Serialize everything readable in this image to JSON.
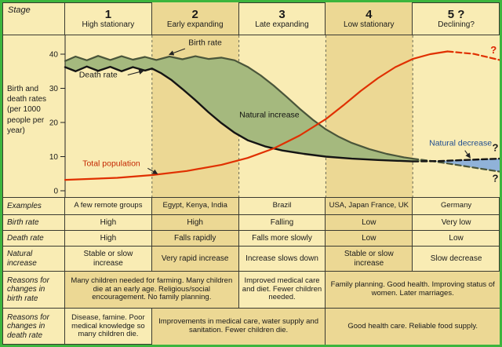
{
  "theme": {
    "frame": "#3db53d",
    "bg": "#f9ecb4",
    "bg_alt": "#ecd894",
    "grid": "#3a3a30",
    "text": "#1a1a1a"
  },
  "left": {
    "stage_label": "Stage",
    "axis_label": "Birth and death rates (per 1000 people per year)"
  },
  "rows": {
    "examples": "Examples",
    "birth_rate": "Birth rate",
    "death_rate": "Death rate",
    "natural_increase": "Natural increase",
    "reasons_birth": "Reasons for changes in birth rate",
    "reasons_death": "Reasons for changes in death rate"
  },
  "stages": [
    {
      "number": "1",
      "name": "High stationary",
      "examples": "A few remote groups",
      "birth_rate": "High",
      "death_rate": "High",
      "natural_increase": "Stable or slow increase"
    },
    {
      "number": "2",
      "name": "Early expanding",
      "examples": "Egypt, Kenya, India",
      "birth_rate": "High",
      "death_rate": "Falls rapidly",
      "natural_increase": "Very rapid increase"
    },
    {
      "number": "3",
      "name": "Late expanding",
      "examples": "Brazil",
      "birth_rate": "Falling",
      "death_rate": "Falls more slowly",
      "natural_increase": "Increase slows down"
    },
    {
      "number": "4",
      "name": "Low stationary",
      "examples": "USA, Japan France, UK",
      "birth_rate": "Low",
      "death_rate": "Low",
      "natural_increase": "Stable or slow increase"
    },
    {
      "number": "5 ?",
      "name": "Declining?",
      "examples": "Germany",
      "birth_rate": "Very low",
      "death_rate": "Low",
      "natural_increase": "Slow decrease"
    }
  ],
  "reasons_birth": [
    {
      "stages": "1-2",
      "text": "Many children needed for farming. Many children die at an early age. Religious/social encouragement. No family planning."
    },
    {
      "stages": "3",
      "text": "Improved medical care and diet. Fewer children needed."
    },
    {
      "stages": "4-5",
      "text": "Family planning. Good health. Improving status of women. Later marriages."
    }
  ],
  "reasons_death": [
    {
      "stages": "1",
      "text": "Disease, famine. Poor medical knowledge so many children die."
    },
    {
      "stages": "2-3",
      "text": "Improvements in medical care, water supply and sanitation. Fewer children die."
    },
    {
      "stages": "4-5",
      "text": "Good health care. Reliable food supply."
    }
  ],
  "chart_data": {
    "type": "line",
    "ylabel": "Birth and death rates (per 1000 people per year)",
    "ylim": [
      0,
      45
    ],
    "yticks": [
      0,
      10,
      20,
      30,
      40
    ],
    "stage_count": 5,
    "cross": [
      4.2,
      8.65
    ],
    "colors": {
      "col": "#f9ecb4",
      "col_alt": "#ecd894",
      "grid": "#6b6b57",
      "increase": "#a5b97e",
      "decrease": "#90b2d9"
    },
    "series": [
      {
        "name": "Birth rate",
        "color": "#4a553a",
        "w": 2.2,
        "solid": [
          [
            0,
            38
          ],
          [
            0.12,
            39.3
          ],
          [
            0.25,
            38.2
          ],
          [
            0.38,
            39.5
          ],
          [
            0.52,
            38.3
          ],
          [
            0.65,
            39.4
          ],
          [
            0.78,
            38.4
          ],
          [
            0.92,
            39.2
          ],
          [
            1.05,
            38.3
          ],
          [
            1.2,
            39.3
          ],
          [
            1.35,
            38.5
          ],
          [
            1.5,
            39.4
          ],
          [
            1.65,
            38.6
          ],
          [
            1.8,
            39
          ],
          [
            1.95,
            38.2
          ],
          [
            2.1,
            36.3
          ],
          [
            2.25,
            33.8
          ],
          [
            2.4,
            30.8
          ],
          [
            2.55,
            27.5
          ],
          [
            2.7,
            24
          ],
          [
            2.85,
            20.8
          ],
          [
            3,
            18
          ],
          [
            3.15,
            15.8
          ],
          [
            3.3,
            14
          ],
          [
            3.5,
            12.2
          ],
          [
            3.7,
            10.8
          ],
          [
            3.9,
            9.8
          ],
          [
            4,
            9.4
          ]
        ],
        "dashed": [
          [
            4,
            9.4
          ],
          [
            4.25,
            8.6
          ],
          [
            4.5,
            7.6
          ],
          [
            4.75,
            6.6
          ],
          [
            5,
            5.6
          ]
        ]
      },
      {
        "name": "Death rate",
        "color": "#141414",
        "w": 2.4,
        "solid": [
          [
            0,
            36.2
          ],
          [
            0.12,
            35
          ],
          [
            0.25,
            36.4
          ],
          [
            0.38,
            35.1
          ],
          [
            0.52,
            36.3
          ],
          [
            0.65,
            35
          ],
          [
            0.78,
            36.2
          ],
          [
            0.92,
            35.2
          ],
          [
            1,
            35.8
          ],
          [
            1.1,
            34.5
          ],
          [
            1.22,
            32.5
          ],
          [
            1.35,
            29.8
          ],
          [
            1.5,
            26.5
          ],
          [
            1.65,
            23
          ],
          [
            1.8,
            19.8
          ],
          [
            1.95,
            17
          ],
          [
            2.1,
            14.8
          ],
          [
            2.3,
            13
          ],
          [
            2.5,
            11.8
          ],
          [
            2.75,
            10.8
          ],
          [
            3,
            10
          ],
          [
            3.3,
            9.4
          ],
          [
            3.6,
            9
          ],
          [
            4,
            8.6
          ]
        ],
        "dashed": [
          [
            4,
            8.6
          ],
          [
            4.3,
            8.7
          ],
          [
            4.6,
            9
          ],
          [
            5,
            9.4
          ]
        ]
      },
      {
        "name": "Total population",
        "color": "#e03000",
        "w": 2.2,
        "solid": [
          [
            0,
            3.2
          ],
          [
            0.6,
            3.8
          ],
          [
            1,
            4.6
          ],
          [
            1.4,
            5.8
          ],
          [
            1.8,
            7.6
          ],
          [
            2.1,
            9.6
          ],
          [
            2.4,
            12.4
          ],
          [
            2.7,
            16.2
          ],
          [
            3,
            21
          ],
          [
            3.2,
            25
          ],
          [
            3.4,
            29.2
          ],
          [
            3.6,
            33
          ],
          [
            3.8,
            36.2
          ],
          [
            4,
            38.6
          ],
          [
            4.2,
            40
          ],
          [
            4.4,
            40.8
          ]
        ],
        "dashed": [
          [
            4.4,
            40.8
          ],
          [
            4.7,
            40.1
          ],
          [
            5,
            38.3
          ]
        ]
      }
    ],
    "labels": [
      {
        "text": "Birth rate",
        "x": 1.42,
        "v": 42.6,
        "color": "#1a1a1a",
        "anchor": "start"
      },
      {
        "text": "Death rate",
        "x": 0.16,
        "v": 33.2,
        "color": "#1a1a1a",
        "anchor": "start"
      },
      {
        "text": "Natural increase",
        "x": 2.35,
        "v": 21.5,
        "color": "#111111",
        "anchor": "middle"
      },
      {
        "text": "Total population",
        "x": 0.2,
        "v": 7.2,
        "color": "#c32600",
        "anchor": "start"
      },
      {
        "text": "Natural decrease",
        "x": 4.55,
        "v": 13.2,
        "color": "#1f4c8f",
        "anchor": "middle"
      },
      {
        "text": "?",
        "x": 4.93,
        "v": 40.2,
        "color": "#dd2200",
        "anchor": "middle",
        "bold": true,
        "size": 13
      },
      {
        "text": "?",
        "x": 4.95,
        "v": 11.6,
        "color": "#1a1a1a",
        "anchor": "middle",
        "bold": true,
        "size": 13
      },
      {
        "text": "?",
        "x": 4.95,
        "v": 2.6,
        "color": "#1a1a1a",
        "anchor": "middle",
        "bold": true,
        "size": 13
      }
    ],
    "arrows": [
      {
        "from": [
          1.38,
          41.6
        ],
        "to": [
          1.2,
          39.9
        ]
      },
      {
        "from": [
          0.72,
          33.9
        ],
        "to": [
          0.9,
          35.1
        ]
      },
      {
        "from": [
          0.95,
          6.6
        ],
        "to": [
          1.06,
          5.0
        ]
      },
      {
        "from": [
          4.6,
          11.8
        ],
        "to": [
          4.66,
          9.7
        ]
      }
    ]
  }
}
